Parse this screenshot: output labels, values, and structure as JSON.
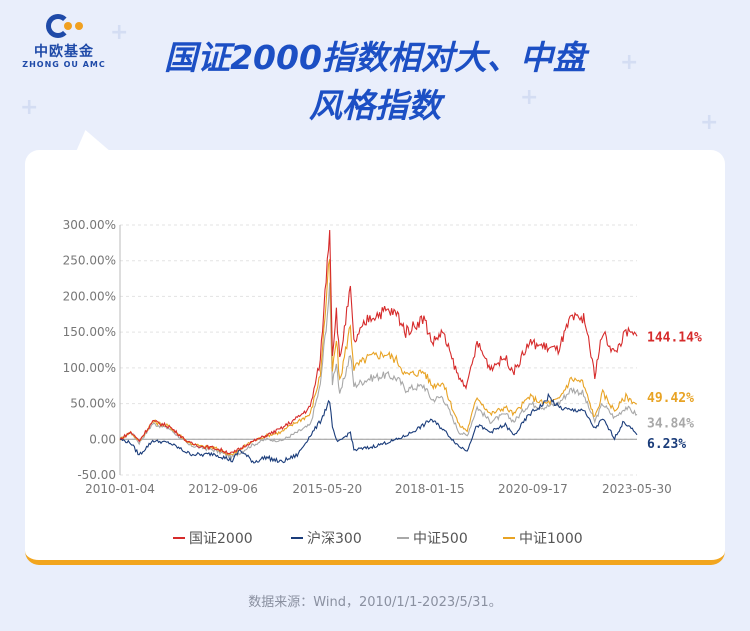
{
  "logo": {
    "name_cn": "中欧基金",
    "name_en": "ZHONG OU AMC"
  },
  "title": {
    "line1": "国证2000指数相对大、中盘",
    "line2": "风格指数"
  },
  "source": "数据来源：Wind，2010/1/1-2023/5/31。",
  "colors": {
    "background": "#e9eefb",
    "title": "#1c4fc4",
    "card_border": "#f2a51e"
  },
  "chart_data": {
    "type": "line",
    "y_ticks": [
      "300.00%",
      "250.00%",
      "200.00%",
      "150.00%",
      "100.00%",
      "50.00%",
      "0.00",
      "-50.00"
    ],
    "ylim": [
      -50,
      300
    ],
    "x_ticks": [
      "2010-01-04",
      "2012-09-06",
      "2015-05-20",
      "2018-01-15",
      "2020-09-17",
      "2023-05-30"
    ],
    "x_range": [
      "2010-01-04",
      "2023-05-31"
    ],
    "series": [
      {
        "name": "国证2000",
        "color": "#d62b2b",
        "end_label": "144.14%",
        "end_value": 144.14,
        "points": [
          [
            "2010-01-04",
            0
          ],
          [
            "2010-04-15",
            10
          ],
          [
            "2010-07-05",
            -2
          ],
          [
            "2010-11-10",
            25
          ],
          [
            "2011-04-15",
            18
          ],
          [
            "2011-10-20",
            -5
          ],
          [
            "2012-02-15",
            -10
          ],
          [
            "2012-06-10",
            -12
          ],
          [
            "2012-12-03",
            -20
          ],
          [
            "2013-05-15",
            -5
          ],
          [
            "2013-10-15",
            5
          ],
          [
            "2014-03-10",
            15
          ],
          [
            "2014-08-10",
            30
          ],
          [
            "2014-12-10",
            45
          ],
          [
            "2015-03-15",
            110
          ],
          [
            "2015-06-12",
            300
          ],
          [
            "2015-07-08",
            120
          ],
          [
            "2015-08-15",
            180
          ],
          [
            "2015-09-15",
            110
          ],
          [
            "2015-12-25",
            210
          ],
          [
            "2016-01-28",
            135
          ],
          [
            "2016-06-15",
            170
          ],
          [
            "2016-11-25",
            180
          ],
          [
            "2017-03-15",
            175
          ],
          [
            "2017-06-01",
            150
          ],
          [
            "2017-11-20",
            170
          ],
          [
            "2018-02-07",
            135
          ],
          [
            "2018-05-15",
            150
          ],
          [
            "2018-10-19",
            85
          ],
          [
            "2019-01-04",
            75
          ],
          [
            "2019-04-08",
            135
          ],
          [
            "2019-08-10",
            100
          ],
          [
            "2019-12-31",
            115
          ],
          [
            "2020-02-04",
            105
          ],
          [
            "2020-03-23",
            95
          ],
          [
            "2020-08-15",
            135
          ],
          [
            "2020-12-31",
            130
          ],
          [
            "2021-05-15",
            125
          ],
          [
            "2021-09-15",
            170
          ],
          [
            "2021-12-31",
            165
          ],
          [
            "2022-01-10",
            175
          ],
          [
            "2022-04-26",
            90
          ],
          [
            "2022-07-10",
            150
          ],
          [
            "2022-10-31",
            120
          ],
          [
            "2023-02-15",
            150
          ],
          [
            "2023-05-31",
            144.14
          ]
        ]
      },
      {
        "name": "沪深300",
        "color": "#1a3c7a",
        "end_label": "6.23%",
        "end_value": 6.23,
        "points": [
          [
            "2010-01-04",
            0
          ],
          [
            "2010-04-15",
            -5
          ],
          [
            "2010-07-05",
            -22
          ],
          [
            "2010-11-10",
            -2
          ],
          [
            "2011-04-15",
            -5
          ],
          [
            "2011-10-20",
            -20
          ],
          [
            "2012-02-15",
            -22
          ],
          [
            "2012-06-10",
            -20
          ],
          [
            "2012-12-03",
            -30
          ],
          [
            "2013-02-10",
            -15
          ],
          [
            "2013-06-25",
            -32
          ],
          [
            "2013-10-15",
            -25
          ],
          [
            "2014-03-10",
            -32
          ],
          [
            "2014-08-10",
            -22
          ],
          [
            "2014-12-10",
            5
          ],
          [
            "2015-03-15",
            25
          ],
          [
            "2015-06-12",
            55
          ],
          [
            "2015-07-08",
            15
          ],
          [
            "2015-08-26",
            -5
          ],
          [
            "2015-12-25",
            10
          ],
          [
            "2016-01-28",
            -15
          ],
          [
            "2016-06-15",
            -12
          ],
          [
            "2016-11-25",
            -5
          ],
          [
            "2017-03-15",
            0
          ],
          [
            "2017-06-01",
            5
          ],
          [
            "2017-11-20",
            20
          ],
          [
            "2018-01-24",
            28
          ],
          [
            "2018-05-15",
            15
          ],
          [
            "2018-10-19",
            -10
          ],
          [
            "2019-01-04",
            -15
          ],
          [
            "2019-04-08",
            20
          ],
          [
            "2019-08-10",
            10
          ],
          [
            "2019-12-31",
            20
          ],
          [
            "2020-03-23",
            5
          ],
          [
            "2020-08-15",
            35
          ],
          [
            "2020-12-31",
            50
          ],
          [
            "2021-02-10",
            60
          ],
          [
            "2021-05-15",
            45
          ],
          [
            "2021-09-15",
            40
          ],
          [
            "2021-12-31",
            42
          ],
          [
            "2022-04-26",
            15
          ],
          [
            "2022-07-10",
            28
          ],
          [
            "2022-10-31",
            2
          ],
          [
            "2023-01-28",
            25
          ],
          [
            "2023-05-31",
            6.23
          ]
        ]
      },
      {
        "name": "中证500",
        "color": "#a8a8a8",
        "end_label": "34.84%",
        "end_value": 34.84,
        "points": [
          [
            "2010-01-04",
            0
          ],
          [
            "2010-04-15",
            10
          ],
          [
            "2010-07-05",
            -5
          ],
          [
            "2010-11-10",
            22
          ],
          [
            "2011-04-15",
            15
          ],
          [
            "2011-10-20",
            -8
          ],
          [
            "2012-02-15",
            -12
          ],
          [
            "2012-06-10",
            -15
          ],
          [
            "2012-12-03",
            -25
          ],
          [
            "2013-05-15",
            -10
          ],
          [
            "2013-10-15",
            0
          ],
          [
            "2014-03-10",
            -2
          ],
          [
            "2014-08-10",
            10
          ],
          [
            "2014-12-10",
            20
          ],
          [
            "2015-03-15",
            75
          ],
          [
            "2015-06-12",
            210
          ],
          [
            "2015-07-08",
            80
          ],
          [
            "2015-08-15",
            110
          ],
          [
            "2015-09-15",
            60
          ],
          [
            "2015-12-25",
            120
          ],
          [
            "2016-01-28",
            75
          ],
          [
            "2016-06-15",
            85
          ],
          [
            "2016-11-25",
            90
          ],
          [
            "2017-03-15",
            85
          ],
          [
            "2017-06-01",
            70
          ],
          [
            "2017-11-20",
            75
          ],
          [
            "2018-02-07",
            55
          ],
          [
            "2018-05-15",
            60
          ],
          [
            "2018-10-19",
            10
          ],
          [
            "2019-01-04",
            5
          ],
          [
            "2019-04-08",
            45
          ],
          [
            "2019-08-10",
            25
          ],
          [
            "2019-12-31",
            35
          ],
          [
            "2020-03-23",
            25
          ],
          [
            "2020-08-15",
            50
          ],
          [
            "2020-12-31",
            45
          ],
          [
            "2021-05-15",
            50
          ],
          [
            "2021-09-15",
            70
          ],
          [
            "2021-12-31",
            65
          ],
          [
            "2022-04-26",
            25
          ],
          [
            "2022-07-10",
            50
          ],
          [
            "2022-10-31",
            30
          ],
          [
            "2023-02-15",
            45
          ],
          [
            "2023-05-31",
            34.84
          ]
        ]
      },
      {
        "name": "中证1000",
        "color": "#e8a324",
        "end_label": "49.42%",
        "end_value": 49.42,
        "points": [
          [
            "2010-01-04",
            0
          ],
          [
            "2010-04-15",
            10
          ],
          [
            "2010-07-05",
            -3
          ],
          [
            "2010-11-10",
            25
          ],
          [
            "2011-04-15",
            18
          ],
          [
            "2011-10-20",
            -5
          ],
          [
            "2012-02-15",
            -10
          ],
          [
            "2012-06-10",
            -12
          ],
          [
            "2012-12-03",
            -22
          ],
          [
            "2013-05-15",
            -5
          ],
          [
            "2013-10-15",
            5
          ],
          [
            "2014-03-10",
            10
          ],
          [
            "2014-08-10",
            25
          ],
          [
            "2014-12-10",
            35
          ],
          [
            "2015-03-15",
            90
          ],
          [
            "2015-06-12",
            255
          ],
          [
            "2015-07-08",
            95
          ],
          [
            "2015-08-15",
            140
          ],
          [
            "2015-09-15",
            80
          ],
          [
            "2015-12-25",
            160
          ],
          [
            "2016-01-28",
            100
          ],
          [
            "2016-06-15",
            115
          ],
          [
            "2016-11-25",
            120
          ],
          [
            "2017-03-15",
            110
          ],
          [
            "2017-06-01",
            90
          ],
          [
            "2017-11-20",
            95
          ],
          [
            "2018-02-07",
            75
          ],
          [
            "2018-05-15",
            80
          ],
          [
            "2018-10-19",
            20
          ],
          [
            "2019-01-04",
            12
          ],
          [
            "2019-04-08",
            60
          ],
          [
            "2019-08-10",
            35
          ],
          [
            "2019-12-31",
            45
          ],
          [
            "2020-03-23",
            35
          ],
          [
            "2020-08-15",
            60
          ],
          [
            "2020-12-31",
            50
          ],
          [
            "2021-05-15",
            55
          ],
          [
            "2021-09-15",
            85
          ],
          [
            "2021-12-31",
            80
          ],
          [
            "2022-04-26",
            30
          ],
          [
            "2022-07-10",
            65
          ],
          [
            "2022-10-31",
            40
          ],
          [
            "2023-02-15",
            60
          ],
          [
            "2023-05-31",
            49.42
          ]
        ]
      }
    ]
  }
}
